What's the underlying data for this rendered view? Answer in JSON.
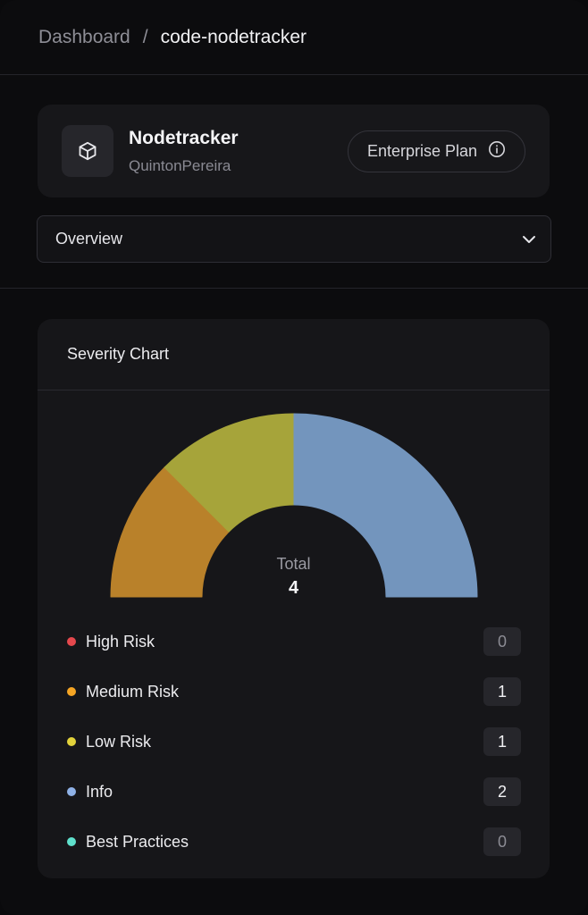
{
  "breadcrumb": {
    "parent": "Dashboard",
    "separator": "/",
    "current": "code-nodetracker"
  },
  "project": {
    "name": "Nodetracker",
    "owner": "QuintonPereira",
    "plan_label": "Enterprise Plan",
    "icon": "cube-icon"
  },
  "view_select": {
    "value": "Overview"
  },
  "severity": {
    "title": "Severity Chart",
    "total_label": "Total",
    "total_value": "4",
    "items": [
      {
        "label": "High Risk",
        "count": "0",
        "color": "#e5484d"
      },
      {
        "label": "Medium Risk",
        "count": "1",
        "color": "#f5a524"
      },
      {
        "label": "Low Risk",
        "count": "1",
        "color": "#e2d23b"
      },
      {
        "label": "Info",
        "count": "2",
        "color": "#8fb1e6"
      },
      {
        "label": "Best Practices",
        "count": "0",
        "color": "#5fe0cc"
      }
    ]
  },
  "chart_data": {
    "type": "pie",
    "style": "semi-donut",
    "title": "Severity Chart",
    "categories": [
      "High Risk",
      "Medium Risk",
      "Low Risk",
      "Info",
      "Best Practices"
    ],
    "values": [
      0,
      1,
      1,
      2,
      0
    ],
    "slice_colors": [
      "#e5484d",
      "#b9812a",
      "#a6a43a",
      "#7395bd",
      "#5fe0cc"
    ],
    "total": 4
  }
}
